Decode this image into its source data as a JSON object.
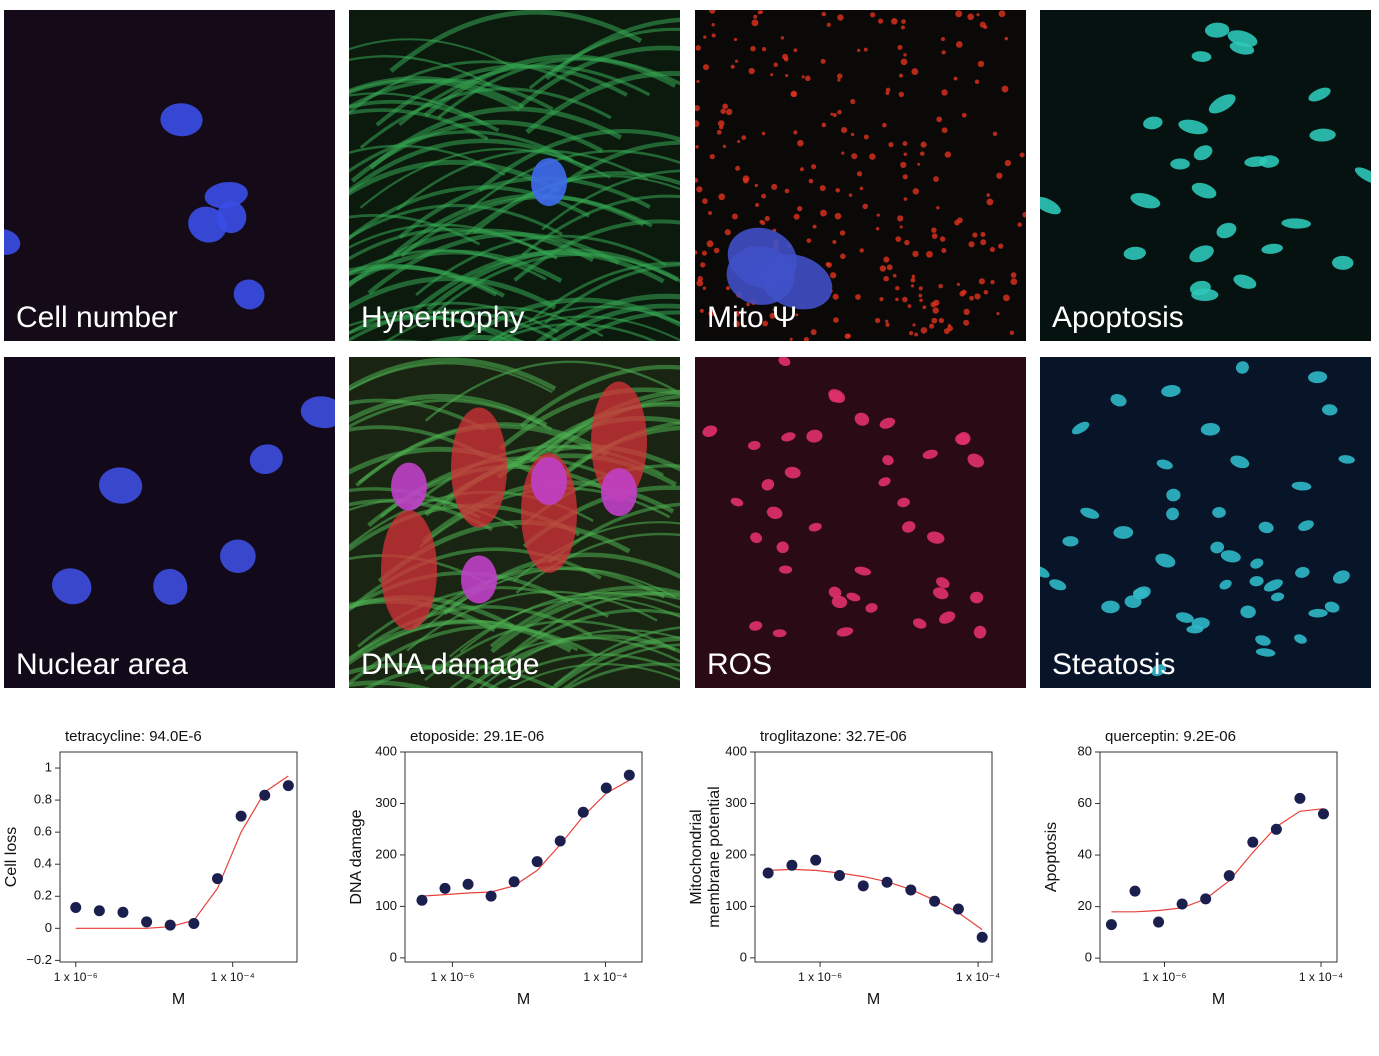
{
  "panels": [
    {
      "label": "Cell number"
    },
    {
      "label": "Hypertrophy"
    },
    {
      "label": "Mito Ψ"
    },
    {
      "label": "Apoptosis"
    },
    {
      "label": "Nuclear area"
    },
    {
      "label": "DNA damage"
    },
    {
      "label": "ROS"
    },
    {
      "label": "Steatosis"
    }
  ],
  "chart_data": [
    {
      "type": "scatter",
      "title": "tetracycline:  94.0E-6",
      "xlabel": "M",
      "ylabel": "Cell loss",
      "log_x": true,
      "x": [
        1e-06,
        2e-06,
        4e-06,
        8e-06,
        1.6e-05,
        3.2e-05,
        6.4e-05,
        0.000128,
        0.000256,
        0.000512
      ],
      "values": [
        0.13,
        0.11,
        0.1,
        0.04,
        0.02,
        0.03,
        0.31,
        0.7,
        0.83,
        0.89
      ],
      "color": "#1a1f4e",
      "fit": {
        "x": [
          1e-06,
          2e-06,
          4e-06,
          8e-06,
          1.6e-05,
          3.2e-05,
          6.4e-05,
          0.000128,
          0.000256,
          0.000512
        ],
        "values": [
          0,
          0,
          0,
          0,
          0.01,
          0.05,
          0.25,
          0.6,
          0.85,
          0.95
        ],
        "color": "#e8413c"
      },
      "xlim": [
        6.3e-07,
        0.00066
      ],
      "ylim": [
        -0.21,
        1.1
      ],
      "xticks": [
        {
          "value": 1e-06,
          "label": "1 x 10⁻⁶"
        },
        {
          "value": 0.0001,
          "label": "1 x 10⁻⁴"
        }
      ],
      "yticks": [
        {
          "value": -0.2,
          "label": "−0.2"
        },
        0,
        0.2,
        0.4,
        0.6,
        0.8,
        1
      ]
    },
    {
      "type": "scatter",
      "title": "etoposide:  29.1E-06",
      "xlabel": "M",
      "ylabel": "DNA damage",
      "log_x": true,
      "x": [
        4e-07,
        8e-07,
        1.6e-06,
        3.2e-06,
        6.4e-06,
        1.28e-05,
        2.56e-05,
        5.12e-05,
        0.0001024,
        0.0002048
      ],
      "values": [
        112,
        135,
        143,
        120,
        148,
        187,
        227,
        283,
        330,
        355
      ],
      "color": "#1a1f4e",
      "fit": {
        "x": [
          4e-07,
          8e-07,
          1.6e-06,
          3.2e-06,
          6.4e-06,
          1.28e-05,
          2.56e-05,
          5.12e-05,
          0.0001024,
          0.0002048
        ],
        "values": [
          120,
          123,
          126,
          128,
          140,
          170,
          220,
          275,
          320,
          345
        ],
        "color": "#e8413c"
      },
      "xlim": [
        2.4e-07,
        0.0003
      ],
      "ylim": [
        -8,
        400
      ],
      "xticks": [
        {
          "value": 1e-06,
          "label": "1 x 10⁻⁶"
        },
        {
          "value": 0.0001,
          "label": "1 x 10⁻⁴"
        }
      ],
      "yticks": [
        0,
        100,
        200,
        300,
        400
      ]
    },
    {
      "type": "scatter",
      "title": "troglitazone:  32.7E-06",
      "xlabel": "M",
      "ylabel": [
        "Mitochondrial",
        "membrane potential"
      ],
      "log_x": true,
      "x": [
        2.2e-07,
        4.4e-07,
        8.8e-07,
        1.76e-06,
        3.52e-06,
        7.04e-06,
        1.408e-05,
        2.816e-05,
        5.632e-05,
        0.00011264
      ],
      "values": [
        165,
        180,
        190,
        160,
        140,
        147,
        132,
        110,
        95,
        40
      ],
      "color": "#1a1f4e",
      "fit": {
        "x": [
          2.2e-07,
          4.4e-07,
          8.8e-07,
          1.76e-06,
          3.52e-06,
          7.04e-06,
          1.408e-05,
          2.816e-05,
          5.632e-05,
          0.00011264
        ],
        "values": [
          170,
          172,
          170,
          165,
          158,
          148,
          133,
          112,
          88,
          55
        ],
        "color": "#e8413c"
      },
      "xlim": [
        1.5e-07,
        0.00015
      ],
      "ylim": [
        -8,
        400
      ],
      "xticks": [
        {
          "value": 1e-06,
          "label": "1 x 10⁻⁶"
        },
        {
          "value": 0.0001,
          "label": "1 x 10⁻⁴"
        }
      ],
      "yticks": [
        0,
        100,
        200,
        300,
        400
      ]
    },
    {
      "type": "scatter",
      "title": "querceptin:  9.2E-06",
      "xlabel": "M",
      "ylabel": "Apoptosis",
      "log_x": true,
      "x": [
        2.1e-07,
        4.2e-07,
        8.4e-07,
        1.68e-06,
        3.36e-06,
        6.72e-06,
        1.344e-05,
        2.688e-05,
        5.376e-05,
        0.00010752
      ],
      "values": [
        13,
        26,
        14,
        21,
        23,
        32,
        45,
        50,
        62,
        56
      ],
      "color": "#1a1f4e",
      "fit": {
        "x": [
          2.1e-07,
          4.2e-07,
          8.4e-07,
          1.68e-06,
          3.36e-06,
          6.72e-06,
          1.344e-05,
          2.688e-05,
          5.376e-05,
          0.00010752
        ],
        "values": [
          18,
          18,
          18.5,
          19.5,
          23,
          30,
          41,
          51,
          57,
          58
        ],
        "color": "#e8413c"
      },
      "xlim": [
        1.5e-07,
        0.00016
      ],
      "ylim": [
        -1.5,
        80
      ],
      "xticks": [
        {
          "value": 1e-06,
          "label": "1 x 10⁻⁶"
        },
        {
          "value": 0.0001,
          "label": "1 x 10⁻⁴"
        }
      ],
      "yticks": [
        0,
        20,
        40,
        60,
        80
      ]
    }
  ]
}
